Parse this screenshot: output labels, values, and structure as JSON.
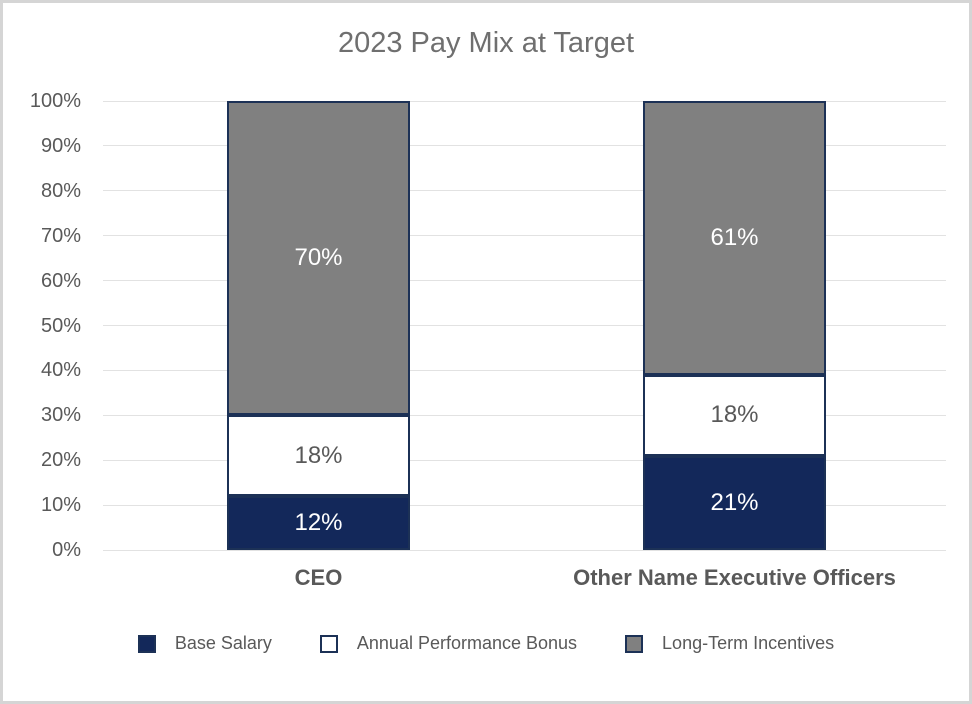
{
  "window": {
    "background": "#ffffff",
    "border_color": "#d5d5d5"
  },
  "chart_data": {
    "type": "bar",
    "stacked": true,
    "orientation": "vertical",
    "title": "2023 Pay Mix at Target",
    "categories": [
      "CEO",
      "Other Name Executive Officers"
    ],
    "series": [
      {
        "name": "Base Salary",
        "values": [
          12,
          21
        ],
        "color": "#13285a",
        "label_color": "#ffffff"
      },
      {
        "name": "Annual Performance Bonus",
        "values": [
          18,
          18
        ],
        "color": "#ffffff",
        "label_color": "#595959"
      },
      {
        "name": "Long-Term Incentives",
        "values": [
          70,
          61
        ],
        "color": "#808080",
        "label_color": "#ffffff"
      }
    ],
    "data_label_suffix": "%",
    "data_labels_shown": [
      [
        "12%",
        "18%",
        "70%"
      ],
      [
        "21%",
        "18%",
        "61%"
      ]
    ],
    "ylim": [
      0,
      100
    ],
    "y_ticks": [
      "0%",
      "10%",
      "20%",
      "30%",
      "40%",
      "50%",
      "60%",
      "70%",
      "80%",
      "90%",
      "100%"
    ],
    "grid": true,
    "gridline_color": "#e2e2e2",
    "bar_border_color": "#1c3156",
    "legend_position": "bottom",
    "title_color": "#6f6f6f",
    "axis_text_color": "#595959"
  }
}
